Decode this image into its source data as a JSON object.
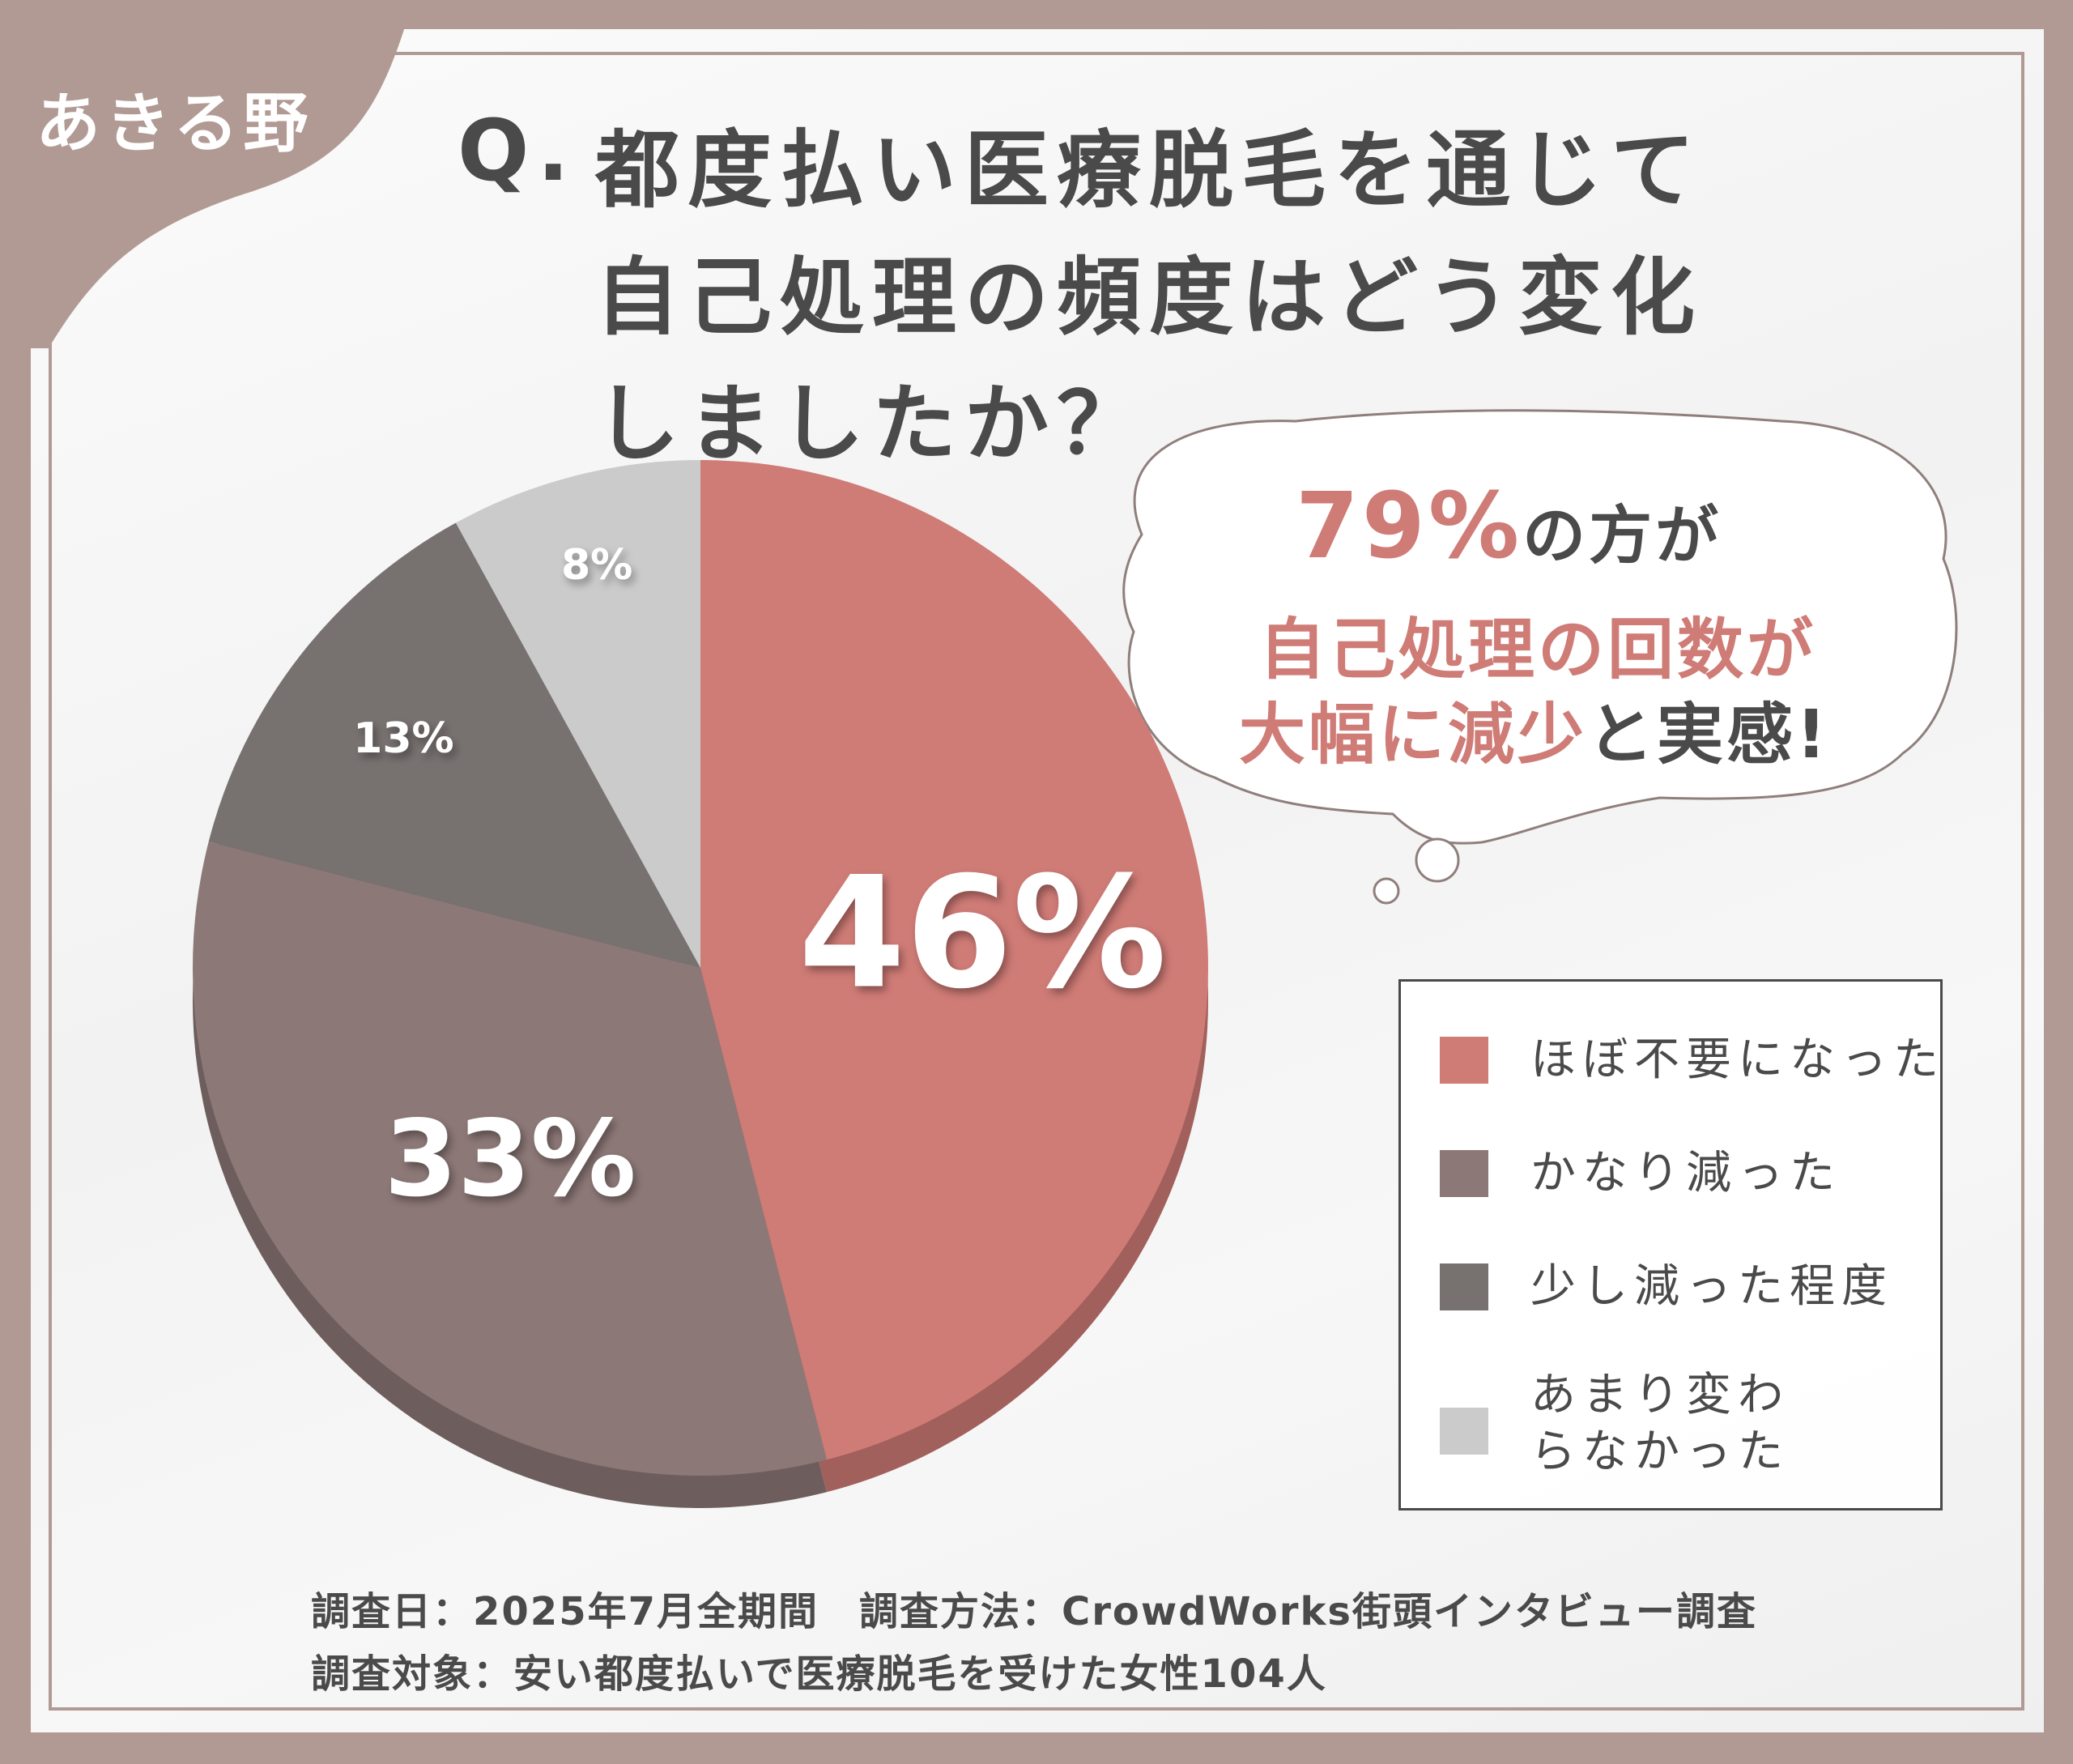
{
  "badge": "あきる野",
  "question": {
    "mark": "Q.",
    "lines": [
      "都度払い医療脱毛を通じて",
      "自己処理の頻度はどう変化",
      "しましたか？"
    ]
  },
  "callout": {
    "percent": "79%",
    "line1_rest": "の方が",
    "line2": "自己処理の回数が",
    "line3_emph": "大幅に減少",
    "line3_rest": "と実感!"
  },
  "chart_data": {
    "type": "pie",
    "categories": [
      "ほぼ不要になった",
      "かなり減った",
      "少し減った程度",
      "あまり変わらなかった"
    ],
    "values": [
      46,
      33,
      13,
      8
    ],
    "value_labels": [
      "46%",
      "33%",
      "13%",
      "8%"
    ],
    "colors": [
      "#cf7b76",
      "#8c7877",
      "#777170",
      "#cbcbcb"
    ],
    "start_angle_deg": 0,
    "direction": "clockwise",
    "legend_position": "right"
  },
  "legend_items": [
    {
      "label": "ほぼ不要になった",
      "color": "#cf7b76"
    },
    {
      "label": "かなり減った",
      "color": "#8c7877"
    },
    {
      "label": "少し減った程度",
      "color": "#777170"
    },
    {
      "label": "あまり変わらなかった",
      "color": "#cbcbcb"
    }
  ],
  "footer": {
    "line1": "調査日：2025年7月全期間　調査方法：CrowdWorks街頭インタビュー調査",
    "line2": "調査対象：安い都度払いで医療脱毛を受けた女性104人"
  },
  "colors": {
    "frame": "#b29a94",
    "accent": "#cf7b76",
    "text": "#4a4a4a"
  }
}
